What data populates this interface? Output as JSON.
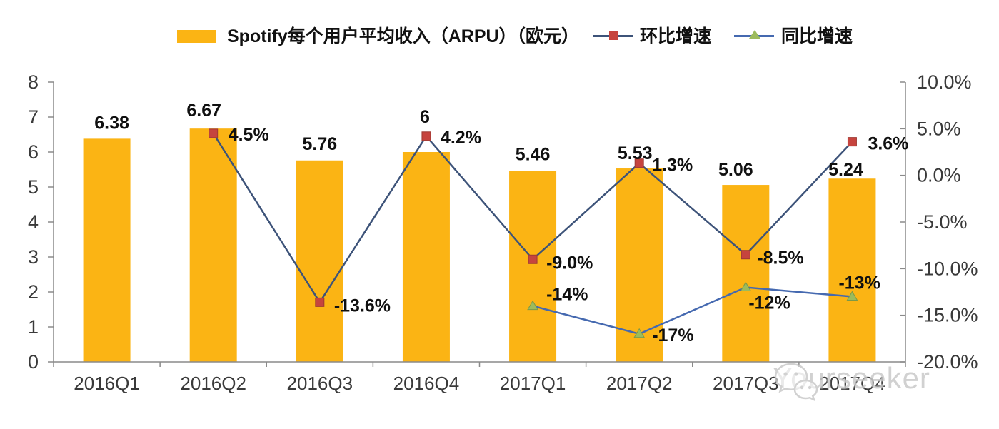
{
  "legend": {
    "bar_label": "Spotify每个用户平均收入（ARPU）（欧元）",
    "qoq_label": "环比增速",
    "yoy_label": "同比增速"
  },
  "watermark": {
    "text": "Yourseeker"
  },
  "chart_data": {
    "type": "bar+line combo",
    "title": "Spotify每个用户平均收入（ARPU）（欧元）",
    "legend_position": "top",
    "gridlines": false,
    "categories": [
      "2016Q1",
      "2016Q2",
      "2016Q3",
      "2016Q4",
      "2017Q1",
      "2017Q2",
      "2017Q3",
      "2017Q4"
    ],
    "series": [
      {
        "name": "Spotify每个用户平均收入（ARPU）（欧元）",
        "type": "bar",
        "axis": "left",
        "color": "#FBB414",
        "values": [
          6.38,
          6.67,
          5.76,
          6,
          5.46,
          5.53,
          5.06,
          5.24
        ],
        "labels": [
          "6.38",
          "6.67",
          "5.76",
          "6",
          "5.46",
          "5.53",
          "5.06",
          "5.24"
        ]
      },
      {
        "name": "环比增速",
        "type": "line",
        "axis": "right",
        "line_color": "#3D5379",
        "marker": "square",
        "marker_color": "#C6443E",
        "values": [
          null,
          4.5,
          -13.6,
          4.2,
          -9.0,
          1.3,
          -8.5,
          3.6
        ],
        "labels": [
          null,
          "4.5%",
          "-13.6%",
          "4.2%",
          "-9.0%",
          "1.3%",
          "-8.5%",
          "3.6%"
        ]
      },
      {
        "name": "同比增速",
        "type": "line",
        "axis": "right",
        "line_color": "#4569B0",
        "marker": "triangle",
        "marker_color": "#9CBB5C",
        "values": [
          null,
          null,
          null,
          null,
          -14,
          -17,
          -12,
          -13
        ],
        "labels": [
          null,
          null,
          null,
          null,
          "-14%",
          "-17%",
          "-12%",
          "-13%"
        ]
      }
    ],
    "left_axis": {
      "min": 0,
      "max": 8,
      "tick_values": [
        0,
        1,
        2,
        3,
        4,
        5,
        6,
        7,
        8
      ],
      "tick_labels": [
        "0",
        "1",
        "2",
        "3",
        "4",
        "5",
        "6",
        "7",
        "8"
      ]
    },
    "right_axis": {
      "min": -20,
      "max": 10,
      "tick_values": [
        10,
        5,
        0,
        -5,
        -10,
        -15,
        -20
      ],
      "tick_labels": [
        "10.0%",
        "5.0%",
        "0.0%",
        "-5.0%",
        "-10.0%",
        "-15.0%",
        "-20.0%"
      ]
    }
  }
}
